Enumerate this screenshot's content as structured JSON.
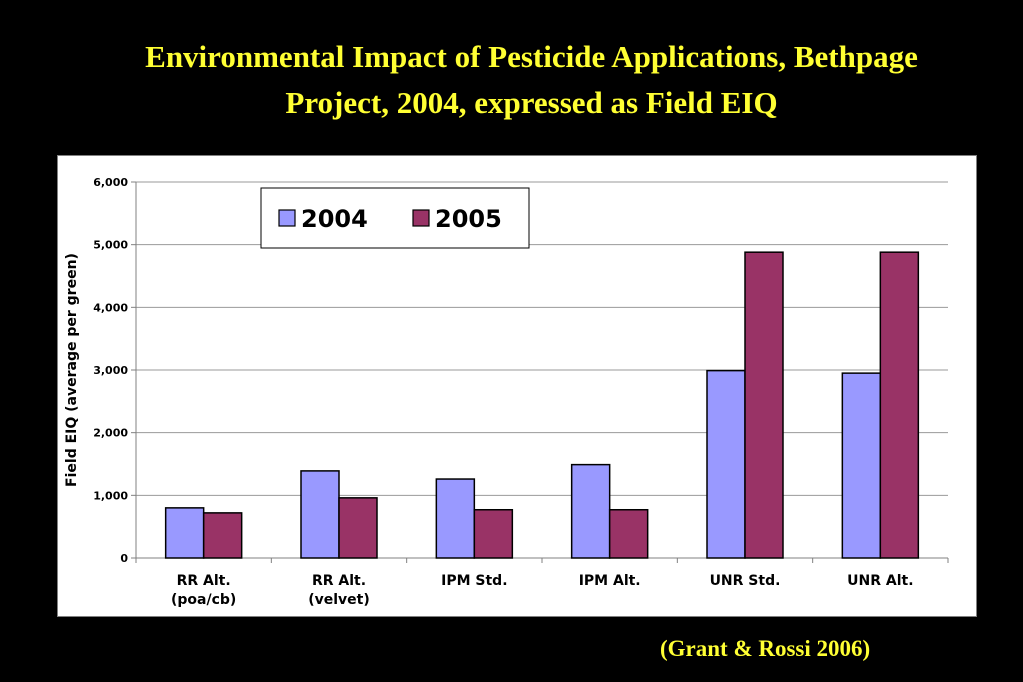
{
  "slide": {
    "title_line1": "Environmental Impact of Pesticide Applications, Bethpage",
    "title_line2": "Project, 2004, expressed as Field EIQ",
    "citation": "(Grant & Rossi 2006)"
  },
  "colors": {
    "background": "#000000",
    "title": "#ffff33",
    "series_2004": "#9999ff",
    "series_2005": "#993366"
  },
  "chart_data": {
    "type": "bar",
    "title": "",
    "xlabel": "",
    "ylabel": "Field EIQ (average per green)",
    "ylim": [
      0,
      6000
    ],
    "yticks": [
      0,
      1000,
      2000,
      3000,
      4000,
      5000,
      6000
    ],
    "ytick_labels": [
      "0",
      "1,000",
      "2,000",
      "3,000",
      "4,000",
      "5,000",
      "6,000"
    ],
    "grid": true,
    "legend_position": "top-left",
    "categories": [
      [
        "RR Alt.",
        "(poa/cb)"
      ],
      [
        "RR Alt.",
        "(velvet)"
      ],
      [
        "IPM Std."
      ],
      [
        "IPM Alt."
      ],
      [
        "UNR Std."
      ],
      [
        "UNR Alt."
      ]
    ],
    "series": [
      {
        "name": "2004",
        "color": "#9999ff",
        "values": [
          800,
          1390,
          1260,
          1490,
          2990,
          2950
        ]
      },
      {
        "name": "2005",
        "color": "#993366",
        "values": [
          720,
          960,
          770,
          770,
          4880,
          4880
        ]
      }
    ]
  }
}
